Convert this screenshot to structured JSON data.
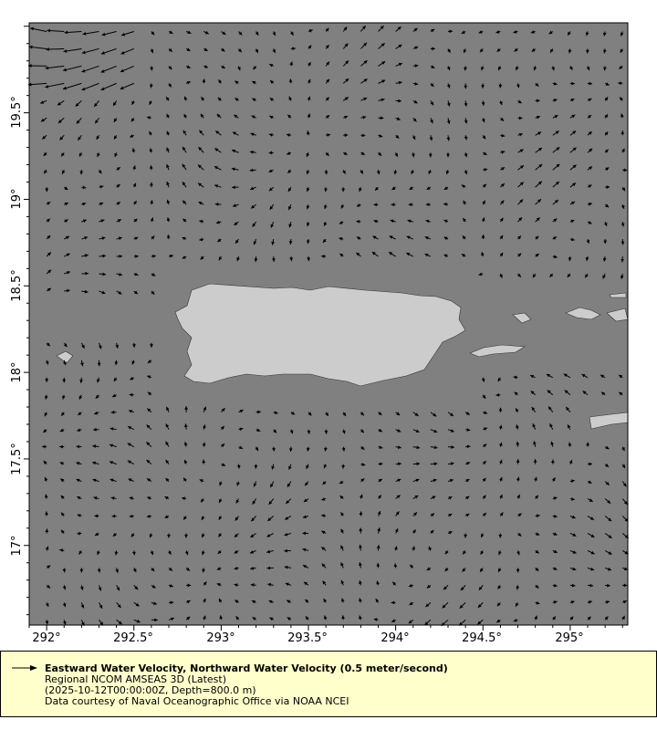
{
  "chart_data": {
    "type": "vector-map",
    "x_range": [
      291.9,
      295.33
    ],
    "y_range": [
      16.54,
      20.02
    ],
    "x_ticks": [
      "292°",
      "292.5°",
      "293°",
      "293.5°",
      "294°",
      "294.5°",
      "295°"
    ],
    "x_tick_values": [
      292,
      292.5,
      293,
      293.5,
      294,
      294.5,
      295
    ],
    "y_ticks": [
      "17°",
      "17.5°",
      "18°",
      "18.5°",
      "19°",
      "19.5°"
    ],
    "y_tick_values": [
      17,
      17.5,
      18,
      18.5,
      19,
      19.5
    ],
    "grid_spacing_deg": 0.1,
    "reference_vector": "0.5 meter/second",
    "colors": {
      "ocean": "#808080",
      "land": "#cccccc",
      "vector": "#000000",
      "legend_bg": "#ffffcc"
    }
  },
  "legend": {
    "title": "Eastward Water Velocity, Northward Water Velocity (0.5 meter/second)",
    "line1": "Regional NCOM AMSEAS 3D (Latest)",
    "line2": "(2025-10-12T00:00:00Z, Depth=800.0 m)",
    "line3": "Data courtesy of Naval Oceanographic Office via NOAA NCEI"
  }
}
